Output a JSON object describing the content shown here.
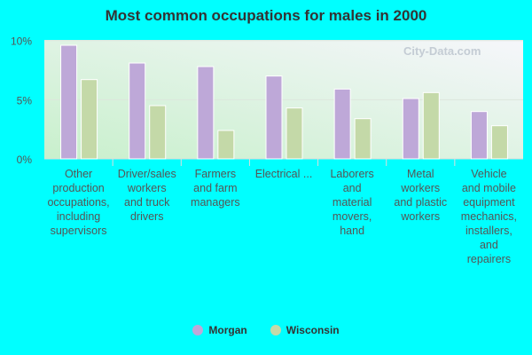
{
  "chart_data": {
    "type": "bar",
    "title": "Most common occupations for males in 2000",
    "categories": [
      "Other production occupations, including supervisors",
      "Driver/sales workers and truck drivers",
      "Farmers and farm managers",
      "Electrical ...",
      "Laborers and material movers, hand",
      "Metal workers and plastic workers",
      "Vehicle and mobile equipment mechanics, installers, and repairers"
    ],
    "category_lines": [
      [
        "Other",
        "production",
        "occupations,",
        "including",
        "supervisors"
      ],
      [
        "Driver/sales",
        "workers",
        "and truck",
        "drivers"
      ],
      [
        "Farmers",
        "and farm",
        "managers"
      ],
      [
        "Electrical ..."
      ],
      [
        "Laborers",
        "and",
        "material",
        "movers,",
        "hand"
      ],
      [
        "Metal",
        "workers",
        "and plastic",
        "workers"
      ],
      [
        "Vehicle",
        "and mobile",
        "equipment",
        "mechanics,",
        "installers,",
        "and",
        "repairers"
      ]
    ],
    "series": [
      {
        "name": "Morgan",
        "color": "#bea8d8",
        "values": [
          9.6,
          8.1,
          7.8,
          7.0,
          5.9,
          5.1,
          4.0
        ]
      },
      {
        "name": "Wisconsin",
        "color": "#c4d9a8",
        "values": [
          6.7,
          4.5,
          2.4,
          4.3,
          3.4,
          5.6,
          2.8
        ]
      }
    ],
    "ylim": [
      0,
      10
    ],
    "yticks": [
      "0%",
      "5%",
      "10%"
    ],
    "grid": true,
    "legend": "bottom",
    "watermark": "City-Data.com"
  }
}
